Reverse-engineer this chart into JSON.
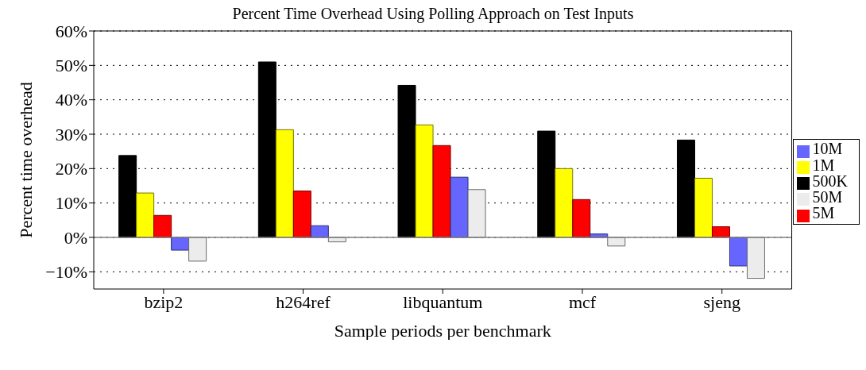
{
  "chart_data": {
    "type": "bar",
    "title": "Percent Time Overhead Using Polling Approach on Test Inputs",
    "xlabel": "Sample periods per benchmark",
    "ylabel": "Percent time overhead",
    "categories": [
      "bzip2",
      "h264ref",
      "libquantum",
      "mcf",
      "sjeng"
    ],
    "series": [
      {
        "name": "500K",
        "color": "#000000",
        "values": [
          23.8,
          51.0,
          44.2,
          30.9,
          28.3
        ]
      },
      {
        "name": "1M",
        "color": "#ffff00",
        "values": [
          12.9,
          31.3,
          32.7,
          20.0,
          17.2
        ]
      },
      {
        "name": "5M",
        "color": "#ff0000",
        "values": [
          6.4,
          13.5,
          26.7,
          11.0,
          3.1
        ]
      },
      {
        "name": "10M",
        "color": "#6666ff",
        "values": [
          -3.7,
          3.4,
          17.5,
          1.0,
          -8.3
        ]
      },
      {
        "name": "50M",
        "color": "#ececec",
        "values": [
          -6.9,
          -1.3,
          13.9,
          -2.5,
          -11.9
        ]
      }
    ],
    "ylim": [
      -15,
      60
    ],
    "yticks": [
      {
        "value": -10,
        "label": "−10%"
      },
      {
        "value": 0,
        "label": "0%"
      },
      {
        "value": 10,
        "label": "10%"
      },
      {
        "value": 20,
        "label": "20%"
      },
      {
        "value": 30,
        "label": "30%"
      },
      {
        "value": 40,
        "label": "40%"
      },
      {
        "value": 50,
        "label": "50%"
      },
      {
        "value": 60,
        "label": "60%"
      }
    ],
    "ref_lines": [
      {
        "axis": "y",
        "value": 0,
        "color": "#808080",
        "line_style": "solid"
      }
    ],
    "grid": "y",
    "legend": "right"
  }
}
